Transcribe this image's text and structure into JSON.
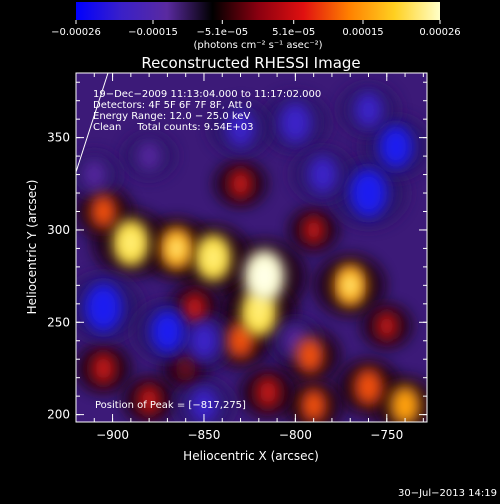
{
  "chart_data": {
    "type": "heatmap",
    "title": "Reconstructed RHESSI Image",
    "xlabel": "Heliocentric X (arcsec)",
    "ylabel": "Heliocentric Y (arcsec)",
    "xlim": [
      -920,
      -728
    ],
    "ylim": [
      196,
      385
    ],
    "x_ticks": [
      -900,
      -850,
      -800,
      -750
    ],
    "x_tick_labels": [
      "−900",
      "−850",
      "−800",
      "−750"
    ],
    "y_ticks": [
      200,
      250,
      300,
      350
    ],
    "y_tick_labels": [
      "200",
      "250",
      "300",
      "350"
    ],
    "colorbar": {
      "ticks": [
        -0.00026,
        -0.00015,
        -5.1e-05,
        5.1e-05,
        0.00015,
        0.00026
      ],
      "tick_labels": [
        "−0.00026",
        "−0.00015",
        "−5.1e−05",
        "5.1e−05",
        "0.00015",
        "0.00026"
      ],
      "unit_label": "(photons cm⁻² s⁻¹ asec⁻²)",
      "range": [
        -0.00026,
        0.00026
      ],
      "colormap": [
        "#0000ff",
        "#3a20c8",
        "#5a2aa0",
        "#000000",
        "#8a0010",
        "#e01010",
        "#ff8000",
        "#ffd020",
        "#ffffc8"
      ]
    },
    "annotations": [
      "19−Dec−2009 11:13:04.000 to 11:17:02.000",
      "Detectors: 4F 5F 6F 7F 8F, Att 0",
      "Energy Range: 12.0 − 25.0 keV",
      "Clean     Total counts: 9.54E+03"
    ],
    "peak_label": "Position of Peak = [−817,275]",
    "peak": [
      -817,
      275
    ],
    "footer_date": "30−Jul−2013 14:19",
    "blobs": [
      {
        "x": -817,
        "y": 275,
        "v": 1.0
      },
      {
        "x": -820,
        "y": 255,
        "v": 0.85
      },
      {
        "x": -845,
        "y": 285,
        "v": 0.85
      },
      {
        "x": -865,
        "y": 290,
        "v": 0.75
      },
      {
        "x": -890,
        "y": 293,
        "v": 0.85
      },
      {
        "x": -905,
        "y": 310,
        "v": 0.5
      },
      {
        "x": -770,
        "y": 270,
        "v": 0.75
      },
      {
        "x": -830,
        "y": 240,
        "v": 0.55
      },
      {
        "x": -855,
        "y": 258,
        "v": 0.4
      },
      {
        "x": -792,
        "y": 232,
        "v": 0.55
      },
      {
        "x": -760,
        "y": 215,
        "v": 0.6
      },
      {
        "x": -740,
        "y": 205,
        "v": 0.65
      },
      {
        "x": -790,
        "y": 205,
        "v": 0.5
      },
      {
        "x": -815,
        "y": 212,
        "v": 0.45
      },
      {
        "x": -905,
        "y": 225,
        "v": 0.45
      },
      {
        "x": -830,
        "y": 325,
        "v": 0.4
      },
      {
        "x": -790,
        "y": 300,
        "v": 0.35
      },
      {
        "x": -880,
        "y": 208,
        "v": 0.4
      },
      {
        "x": -750,
        "y": 248,
        "v": 0.35
      },
      {
        "x": -860,
        "y": 225,
        "v": 0.3
      },
      {
        "x": -905,
        "y": 258,
        "v": -0.9
      },
      {
        "x": -870,
        "y": 245,
        "v": -0.75
      },
      {
        "x": -850,
        "y": 240,
        "v": -0.6
      },
      {
        "x": -760,
        "y": 320,
        "v": -0.9
      },
      {
        "x": -745,
        "y": 345,
        "v": -0.75
      },
      {
        "x": -800,
        "y": 358,
        "v": -0.7
      },
      {
        "x": -785,
        "y": 330,
        "v": -0.6
      },
      {
        "x": -830,
        "y": 355,
        "v": -0.6
      },
      {
        "x": -880,
        "y": 340,
        "v": -0.4
      },
      {
        "x": -800,
        "y": 240,
        "v": -0.4
      },
      {
        "x": -760,
        "y": 365,
        "v": -0.55
      },
      {
        "x": -910,
        "y": 330,
        "v": -0.4
      },
      {
        "x": -850,
        "y": 205,
        "v": -0.55
      }
    ]
  }
}
